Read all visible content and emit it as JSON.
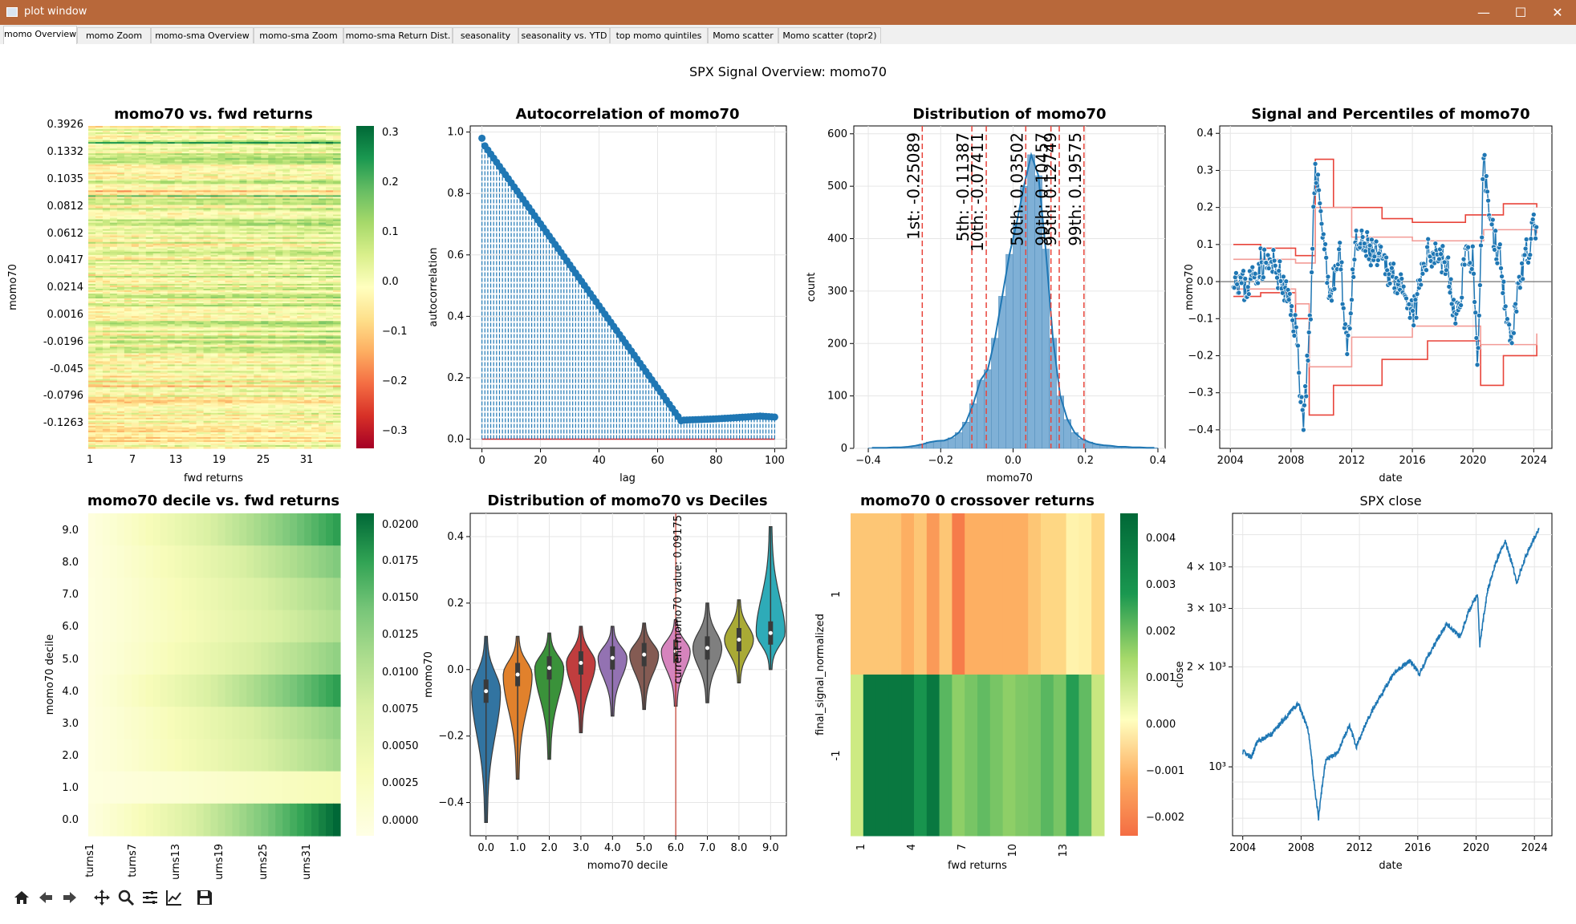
{
  "window": {
    "title": "plot window",
    "controls": {
      "minimize": "—",
      "maximize": "☐",
      "close": "✕"
    }
  },
  "tabs": [
    {
      "label": "momo Overview",
      "active": true
    },
    {
      "label": "momo Zoom"
    },
    {
      "label": "momo-sma Overview"
    },
    {
      "label": "momo-sma Zoom"
    },
    {
      "label": "momo-sma Return Dist."
    },
    {
      "label": "seasonality"
    },
    {
      "label": "seasonality vs. YTD"
    },
    {
      "label": "top momo quintiles"
    },
    {
      "label": "Momo scatter"
    },
    {
      "label": "Momo scatter (topr2)"
    }
  ],
  "figure": {
    "suptitle": "SPX Signal Overview: momo70"
  },
  "toolbar": {
    "icons": [
      "home-icon",
      "back-icon",
      "forward-icon",
      "pan-icon",
      "zoom-icon",
      "configure-icon",
      "edit-axis-icon",
      "save-icon"
    ]
  },
  "colors": {
    "titlebar": "#b8683a",
    "series_blue": "#1f77b4",
    "red_lines": "#e8443a"
  },
  "chart_data": [
    {
      "id": "heatmap-fwd-returns",
      "type": "heatmap",
      "title": "momo70 vs. fwd returns",
      "xlabel": "fwd returns",
      "ylabel": "momo70",
      "x_ticks": [
        "1",
        "7",
        "13",
        "19",
        "25",
        "31"
      ],
      "y_ticks": [
        "0.3926",
        "0.1332",
        "0.1035",
        "0.0812",
        "0.0612",
        "0.0417",
        "0.0214",
        "0.0016",
        "-0.0196",
        "-0.045",
        "-0.0796",
        "-0.1263"
      ],
      "colorbar_ticks": [
        "0.3",
        "0.2",
        "0.1",
        "0.0",
        "−0.1",
        "−0.2",
        "−0.3"
      ],
      "colormap": "RdYlGn",
      "vrange": [
        -0.33,
        0.33
      ]
    },
    {
      "id": "autocorrelation",
      "type": "stem",
      "title": "Autocorrelation of momo70",
      "xlabel": "lag",
      "ylabel": "autocorrelation",
      "x_ticks": [
        "0",
        "20",
        "40",
        "60",
        "80",
        "100"
      ],
      "y_ticks": [
        "0.0",
        "0.2",
        "0.4",
        "0.6",
        "0.8",
        "1.0"
      ],
      "xlim": [
        -4,
        104
      ],
      "ylim": [
        -0.03,
        1.02
      ],
      "lags": [
        0,
        100
      ],
      "profile": [
        [
          0,
          0.98
        ],
        [
          1,
          0.955
        ],
        [
          68,
          0.06
        ],
        [
          69,
          0.062
        ],
        [
          80,
          0.066
        ],
        [
          95,
          0.075
        ],
        [
          100,
          0.072
        ]
      ]
    },
    {
      "id": "distribution",
      "type": "histogram",
      "title": "Distribution of momo70",
      "xlabel": "momo70",
      "ylabel": "count",
      "x_ticks": [
        "−0.4",
        "−0.2",
        "0.0",
        "0.2",
        "0.4"
      ],
      "y_ticks": [
        "0",
        "100",
        "200",
        "300",
        "400",
        "500",
        "600"
      ],
      "xlim": [
        -0.44,
        0.42
      ],
      "ylim": [
        0,
        615
      ],
      "bins": [
        [
          -0.4,
          1
        ],
        [
          -0.38,
          1
        ],
        [
          -0.36,
          1
        ],
        [
          -0.34,
          2
        ],
        [
          -0.32,
          2
        ],
        [
          -0.3,
          3
        ],
        [
          -0.28,
          5
        ],
        [
          -0.26,
          8
        ],
        [
          -0.24,
          12
        ],
        [
          -0.22,
          14
        ],
        [
          -0.2,
          15
        ],
        [
          -0.18,
          20
        ],
        [
          -0.16,
          30
        ],
        [
          -0.14,
          50
        ],
        [
          -0.12,
          85
        ],
        [
          -0.1,
          130
        ],
        [
          -0.08,
          150
        ],
        [
          -0.06,
          210
        ],
        [
          -0.04,
          290
        ],
        [
          -0.02,
          370
        ],
        [
          0.0,
          430
        ],
        [
          0.02,
          500
        ],
        [
          0.04,
          560
        ],
        [
          0.06,
          520
        ],
        [
          0.08,
          380
        ],
        [
          0.1,
          210
        ],
        [
          0.12,
          100
        ],
        [
          0.14,
          55
        ],
        [
          0.16,
          30
        ],
        [
          0.18,
          18
        ],
        [
          0.2,
          12
        ],
        [
          0.22,
          8
        ],
        [
          0.24,
          6
        ],
        [
          0.26,
          5
        ],
        [
          0.28,
          3
        ],
        [
          0.3,
          3
        ],
        [
          0.32,
          2
        ],
        [
          0.34,
          2
        ],
        [
          0.36,
          1
        ],
        [
          0.38,
          1
        ]
      ],
      "bin_width": 0.02,
      "percentiles": [
        {
          "label": "1st: -0.25089",
          "value": -0.25089
        },
        {
          "label": "5th: -0.11387",
          "value": -0.11387
        },
        {
          "label": "10th: -0.07411",
          "value": -0.07411
        },
        {
          "label": "50th: 0.03502",
          "value": 0.03502
        },
        {
          "label": "90th: 0.10457",
          "value": 0.10457
        },
        {
          "label": "95th: 0.12749",
          "value": 0.12749
        },
        {
          "label": "99th: 0.19575",
          "value": 0.19575
        }
      ]
    },
    {
      "id": "signal-percentiles",
      "type": "line",
      "title": "Signal and Percentiles of momo70",
      "xlabel": "date",
      "ylabel": "momo70",
      "x_ticks": [
        "2004",
        "2008",
        "2012",
        "2016",
        "2020",
        "2024"
      ],
      "y_ticks": [
        "−0.4",
        "−0.3",
        "−0.2",
        "−0.1",
        "0.0",
        "0.1",
        "0.2",
        "0.3",
        "0.4"
      ],
      "xlim": [
        2003.3,
        2025.2
      ],
      "ylim": [
        -0.45,
        0.42
      ],
      "signal": [
        [
          2004.2,
          0.03
        ],
        [
          2005.0,
          -0.02
        ],
        [
          2006.0,
          0.05
        ],
        [
          2007.0,
          0.04
        ],
        [
          2007.8,
          -0.05
        ],
        [
          2008.3,
          -0.12
        ],
        [
          2008.8,
          -0.38
        ],
        [
          2009.3,
          -0.1
        ],
        [
          2009.6,
          0.33
        ],
        [
          2010.2,
          0.1
        ],
        [
          2010.6,
          -0.05
        ],
        [
          2011.2,
          0.08
        ],
        [
          2011.7,
          -0.18
        ],
        [
          2012.3,
          0.1
        ],
        [
          2013.0,
          0.09
        ],
        [
          2014.0,
          0.05
        ],
        [
          2015.0,
          0.01
        ],
        [
          2015.7,
          -0.09
        ],
        [
          2016.2,
          -0.08
        ],
        [
          2016.8,
          0.06
        ],
        [
          2017.5,
          0.09
        ],
        [
          2018.3,
          0.04
        ],
        [
          2018.9,
          -0.12
        ],
        [
          2019.5,
          0.08
        ],
        [
          2020.0,
          0.06
        ],
        [
          2020.3,
          -0.28
        ],
        [
          2020.7,
          0.33
        ],
        [
          2021.2,
          0.15
        ],
        [
          2021.8,
          0.06
        ],
        [
          2022.5,
          -0.16
        ],
        [
          2023.0,
          0.0
        ],
        [
          2023.6,
          0.08
        ],
        [
          2024.2,
          0.17
        ]
      ],
      "percentile_steps": [
        [
          [
            2004.2,
            0.1
          ],
          [
            2006.0,
            0.09
          ],
          [
            2008.3,
            0.07
          ],
          [
            2009.6,
            0.33
          ],
          [
            2010.8,
            0.2
          ],
          [
            2014.0,
            0.17
          ],
          [
            2016.0,
            0.16
          ],
          [
            2019.5,
            0.18
          ],
          [
            2022.0,
            0.21
          ],
          [
            2024.2,
            0.2
          ]
        ],
        [
          [
            2004.2,
            -0.04
          ],
          [
            2006.0,
            -0.03
          ],
          [
            2008.3,
            -0.1
          ],
          [
            2009.2,
            -0.36
          ],
          [
            2010.8,
            -0.28
          ],
          [
            2014.0,
            -0.21
          ],
          [
            2017.0,
            -0.16
          ],
          [
            2020.5,
            -0.28
          ],
          [
            2022.0,
            -0.2
          ],
          [
            2024.2,
            -0.17
          ]
        ],
        [
          [
            2004.2,
            0.06
          ],
          [
            2008.3,
            0.05
          ],
          [
            2009.6,
            0.2
          ],
          [
            2012.0,
            0.12
          ],
          [
            2016.0,
            0.11
          ],
          [
            2020.7,
            0.14
          ],
          [
            2024.2,
            0.13
          ]
        ],
        [
          [
            2004.2,
            -0.02
          ],
          [
            2008.3,
            -0.06
          ],
          [
            2009.2,
            -0.23
          ],
          [
            2012.0,
            -0.15
          ],
          [
            2016.0,
            -0.12
          ],
          [
            2020.5,
            -0.17
          ],
          [
            2024.2,
            -0.14
          ]
        ]
      ]
    },
    {
      "id": "decile-heatmap",
      "type": "heatmap",
      "title": "momo70 decile vs. fwd returns",
      "xlabel": "",
      "ylabel": "momo70 decile",
      "x_ticks": [
        "turns1",
        "turns7",
        "urns13",
        "urns19",
        "urns25",
        "urns31"
      ],
      "y_ticks": [
        "9.0",
        "8.0",
        "7.0",
        "6.0",
        "5.0",
        "4.0",
        "3.0",
        "2.0",
        "1.0",
        "0.0"
      ],
      "colorbar_ticks": [
        "0.0200",
        "0.0175",
        "0.0150",
        "0.0125",
        "0.0100",
        "0.0075",
        "0.0050",
        "0.0025",
        "0.0000"
      ],
      "colormap": "YlGn",
      "vrange": [
        -0.0005,
        0.021
      ],
      "row_max": [
        0.018,
        0.014,
        0.012,
        0.011,
        0.013,
        0.018,
        0.013,
        0.012,
        0.004,
        0.021
      ]
    },
    {
      "id": "violin-deciles",
      "type": "violin",
      "title": "Distribution of momo70 vs Deciles",
      "xlabel": "momo70 decile",
      "ylabel": "momo70",
      "categories": [
        "0.0",
        "1.0",
        "2.0",
        "3.0",
        "4.0",
        "5.0",
        "6.0",
        "7.0",
        "8.0",
        "9.0"
      ],
      "y_ticks": [
        "−0.4",
        "−0.2",
        "0.0",
        "0.2",
        "0.4"
      ],
      "ylim": [
        -0.5,
        0.47
      ],
      "median": [
        -0.065,
        -0.015,
        0.005,
        0.02,
        0.035,
        0.045,
        0.055,
        0.065,
        0.09,
        0.11
      ],
      "min": [
        -0.46,
        -0.33,
        -0.27,
        -0.19,
        -0.14,
        -0.12,
        -0.11,
        -0.1,
        -0.04,
        0.0
      ],
      "max": [
        0.1,
        0.1,
        0.11,
        0.13,
        0.13,
        0.14,
        0.15,
        0.2,
        0.21,
        0.43
      ],
      "current_value_label": "current momo70 value: 0.09175",
      "current_decile": 6
    },
    {
      "id": "crossover-heatmap",
      "type": "heatmap",
      "title": "momo70 0 crossover returns",
      "xlabel": "fwd returns",
      "ylabel": "final_signal_normalized",
      "x_ticks": [
        "1",
        "4",
        "7",
        "10",
        "13"
      ],
      "y_ticks": [
        "1",
        "-1"
      ],
      "colorbar_label": "close",
      "colorbar_ticks": [
        "0.004",
        "0.003",
        "0.002",
        "0.001",
        "0.000",
        "−0.001",
        "−0.002"
      ],
      "colormap": "RdYlGn",
      "vrange": [
        -0.0025,
        0.0045
      ],
      "rows": [
        [
          -0.0012,
          -0.0012,
          -0.0012,
          -0.0012,
          -0.0016,
          -0.0012,
          -0.0019,
          -0.0012,
          -0.0023,
          -0.0016,
          -0.0016,
          -0.0016,
          -0.0016,
          -0.0016,
          -0.0012,
          -0.0009,
          -0.0009,
          -0.0002,
          -0.0003,
          -0.0009
        ],
        [
          0.0012,
          0.0042,
          0.0042,
          0.0042,
          0.0042,
          0.0037,
          0.0042,
          0.0029,
          0.0022,
          0.0025,
          0.0028,
          0.0025,
          0.0022,
          0.0024,
          0.0025,
          0.0029,
          0.0025,
          0.0035,
          0.0028,
          0.0013
        ]
      ]
    },
    {
      "id": "spx-close",
      "type": "line",
      "title": "SPX close",
      "xlabel": "date",
      "ylabel": "",
      "x_ticks": [
        "2004",
        "2008",
        "2012",
        "2016",
        "2020",
        "2024"
      ],
      "y_ticks": [
        "4 × 10³",
        "3 × 10³",
        "2 × 10³",
        "10³"
      ],
      "log_y": true,
      "xlim": [
        2003.3,
        2025.2
      ],
      "ylim": [
        620,
        5800
      ],
      "series": [
        [
          2004.0,
          1110
        ],
        [
          2004.6,
          1070
        ],
        [
          2005.0,
          1190
        ],
        [
          2006.0,
          1260
        ],
        [
          2007.0,
          1420
        ],
        [
          2007.8,
          1550
        ],
        [
          2008.5,
          1280
        ],
        [
          2008.9,
          880
        ],
        [
          2009.2,
          700
        ],
        [
          2009.7,
          1050
        ],
        [
          2010.5,
          1100
        ],
        [
          2011.3,
          1330
        ],
        [
          2011.8,
          1150
        ],
        [
          2012.5,
          1370
        ],
        [
          2013.5,
          1650
        ],
        [
          2014.5,
          1950
        ],
        [
          2015.5,
          2080
        ],
        [
          2016.1,
          1900
        ],
        [
          2017.0,
          2270
        ],
        [
          2018.0,
          2700
        ],
        [
          2018.9,
          2450
        ],
        [
          2019.5,
          2950
        ],
        [
          2020.1,
          3300
        ],
        [
          2020.25,
          2300
        ],
        [
          2020.8,
          3400
        ],
        [
          2021.5,
          4300
        ],
        [
          2022.0,
          4750
        ],
        [
          2022.8,
          3600
        ],
        [
          2023.5,
          4400
        ],
        [
          2024.3,
          5200
        ]
      ]
    }
  ]
}
